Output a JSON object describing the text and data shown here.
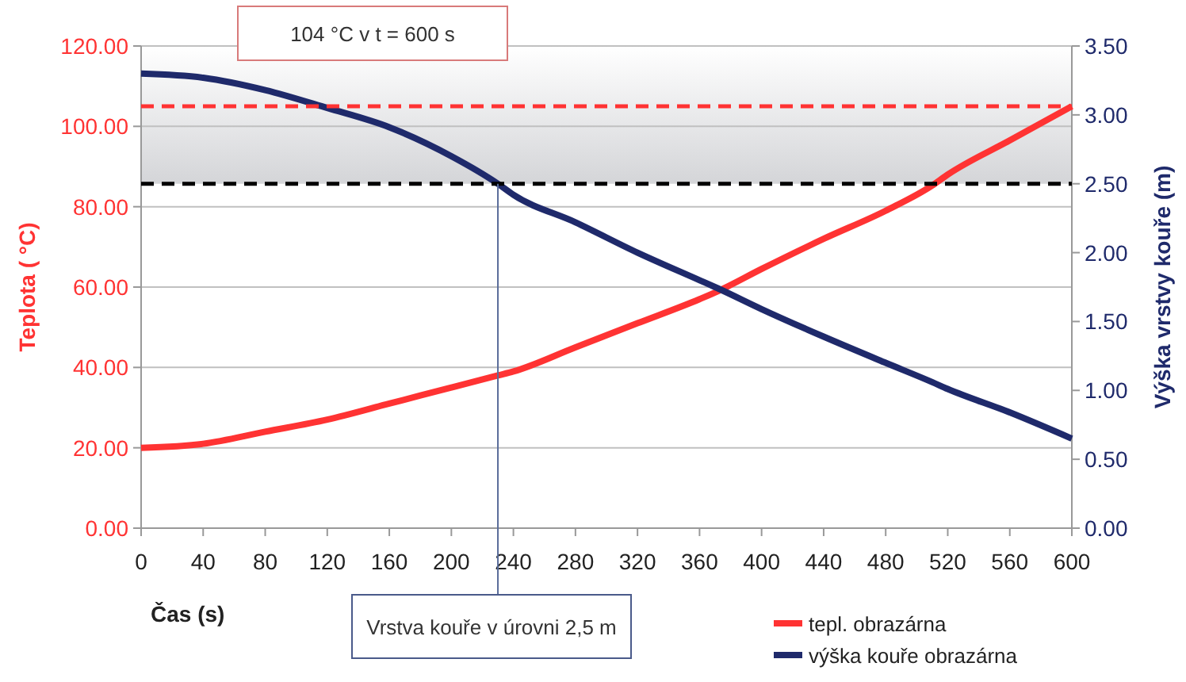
{
  "chart_data": {
    "type": "line",
    "xlabel": "Čas (s)",
    "ylabel": "Teplota ( °C)",
    "y2label": "Výška vrstvy kouře (m)",
    "x": [
      0,
      40,
      80,
      120,
      160,
      200,
      230,
      240,
      280,
      320,
      360,
      372,
      400,
      440,
      480,
      510,
      520,
      560,
      600
    ],
    "series": [
      {
        "name": "tepl. obrazárna",
        "color": "#ff3333",
        "values": [
          20,
          21,
          24,
          27,
          31,
          35,
          38,
          39,
          45,
          51,
          57,
          59,
          64.5,
          72,
          79,
          85.3,
          88,
          96.5,
          105
        ]
      },
      {
        "name": "výška kouře obrazárna",
        "color": "#1f2a6b",
        "axis": "y2",
        "values": [
          3.3,
          3.27,
          3.18,
          3.05,
          2.91,
          2.7,
          2.5,
          2.42,
          2.22,
          2.0,
          1.8,
          1.74,
          1.59,
          1.39,
          1.2,
          1.06,
          1.01,
          0.84,
          0.65
        ]
      }
    ],
    "xlim": [
      0,
      600
    ],
    "xticks": [
      0,
      40,
      80,
      120,
      160,
      200,
      240,
      280,
      320,
      360,
      400,
      440,
      480,
      520,
      560,
      600
    ],
    "ylim": [
      0,
      120
    ],
    "yticks": [
      {
        "value": 0,
        "label": "0.00"
      },
      {
        "value": 20,
        "label": "20.00"
      },
      {
        "value": 40,
        "label": "40.00"
      },
      {
        "value": 60,
        "label": "60.00"
      },
      {
        "value": 80,
        "label": "80.00"
      },
      {
        "value": 100,
        "label": "100.00"
      },
      {
        "value": 120,
        "label": "120.00"
      }
    ],
    "y2lim": [
      0,
      3.5
    ],
    "y2ticks": [
      {
        "value": 0,
        "label": "0.00"
      },
      {
        "value": 0.5,
        "label": "0.50"
      },
      {
        "value": 1,
        "label": "1.00"
      },
      {
        "value": 1.5,
        "label": "1.50"
      },
      {
        "value": 2,
        "label": "2.00"
      },
      {
        "value": 2.5,
        "label": "2.50"
      },
      {
        "value": 3,
        "label": "3.00"
      },
      {
        "value": 3.5,
        "label": "3.50"
      }
    ],
    "ref_lines": [
      {
        "axis": "y",
        "value": 105,
        "color": "#ff3333",
        "line_style": "dashed"
      },
      {
        "axis": "y2",
        "value": 2.5,
        "color": "#000000",
        "line_style": "dashed"
      },
      {
        "axis": "x",
        "value": 230,
        "color": "#5a6d9a",
        "line_style": "solid"
      }
    ],
    "bands": [
      {
        "axis": "y2",
        "from": 2.5,
        "to": 3.5,
        "color": "#d4d5d8"
      }
    ],
    "annotations": [
      "104 °C v t = 600 s",
      "Vrstva kouře v úrovni 2,5 m"
    ],
    "grid": "y",
    "legend": "bottom right",
    "marker": "none",
    "line_style": "solid"
  }
}
